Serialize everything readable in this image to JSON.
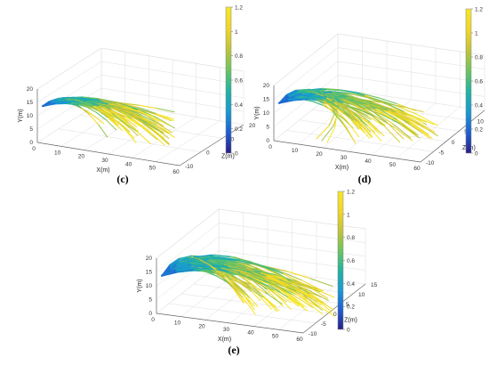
{
  "colorbar": {
    "range": [
      0,
      1.2
    ],
    "ticks": [
      "0",
      "0.2",
      "0.4",
      "0.6",
      "0.8",
      "1",
      "1.2"
    ],
    "colors": [
      "#2a1f86",
      "#1f5fd0",
      "#1a9ad1",
      "#22b3a0",
      "#6dc45e",
      "#c2c33a",
      "#f0d62a",
      "#f5e626"
    ]
  },
  "chart_data": [
    {
      "type": "line3d",
      "caption": "(c)",
      "xlabel": "X(m)",
      "ylabel": "Y(m)",
      "zlabel": "Z(m)",
      "x_ticks": [
        "0",
        "10",
        "20",
        "30",
        "40",
        "50",
        "60"
      ],
      "y_ticks": [
        "0",
        "5",
        "10",
        "15",
        "20"
      ],
      "z_ticks": [
        "-10",
        "0",
        "10",
        "20"
      ],
      "xlim": [
        0,
        60
      ],
      "ylim": [
        0,
        20
      ],
      "zlim": [
        -10,
        20
      ],
      "color_scale": [
        0,
        1.2
      ],
      "series_summary": "bundle of ~60 branch trajectories from near (0, 13, 0), spreading to X about 30-50 m and Y about 2-10 m"
    },
    {
      "type": "line3d",
      "caption": "(d)",
      "xlabel": "X(m)",
      "ylabel": "Y(m)",
      "zlabel": "Z(m)",
      "x_ticks": [
        "0",
        "10",
        "20",
        "30",
        "40",
        "50",
        "60"
      ],
      "y_ticks": [
        "0",
        "5",
        "10",
        "15",
        "20"
      ],
      "z_ticks": [
        "-10",
        "-5",
        "0",
        "5",
        "10",
        "15"
      ],
      "xlim": [
        0,
        60
      ],
      "ylim": [
        0,
        20
      ],
      "zlim": [
        -10,
        15
      ],
      "color_scale": [
        0,
        1.2
      ],
      "series_summary": "bundle of ~70 branch trajectories from near (0, 13, 0), spreading to X about 30-55 m, a few drooping to Y about 0 near X 20"
    },
    {
      "type": "line3d",
      "caption": "(e)",
      "xlabel": "X(m)",
      "ylabel": "Y(m)",
      "zlabel": "Z(m)",
      "x_ticks": [
        "0",
        "10",
        "20",
        "30",
        "40",
        "50",
        "60"
      ],
      "y_ticks": [
        "0",
        "5",
        "10",
        "15",
        "20"
      ],
      "z_ticks": [
        "-10",
        "-5",
        "0",
        "5",
        "10",
        "15"
      ],
      "xlim": [
        0,
        60
      ],
      "ylim": [
        0,
        20
      ],
      "zlim": [
        -10,
        15
      ],
      "color_scale": [
        0,
        1.2
      ],
      "series_summary": "bundle of ~75 branch trajectories from near (0, 13, 0), arching upward to Y about 18 and spreading to X about 30-55 m"
    }
  ]
}
